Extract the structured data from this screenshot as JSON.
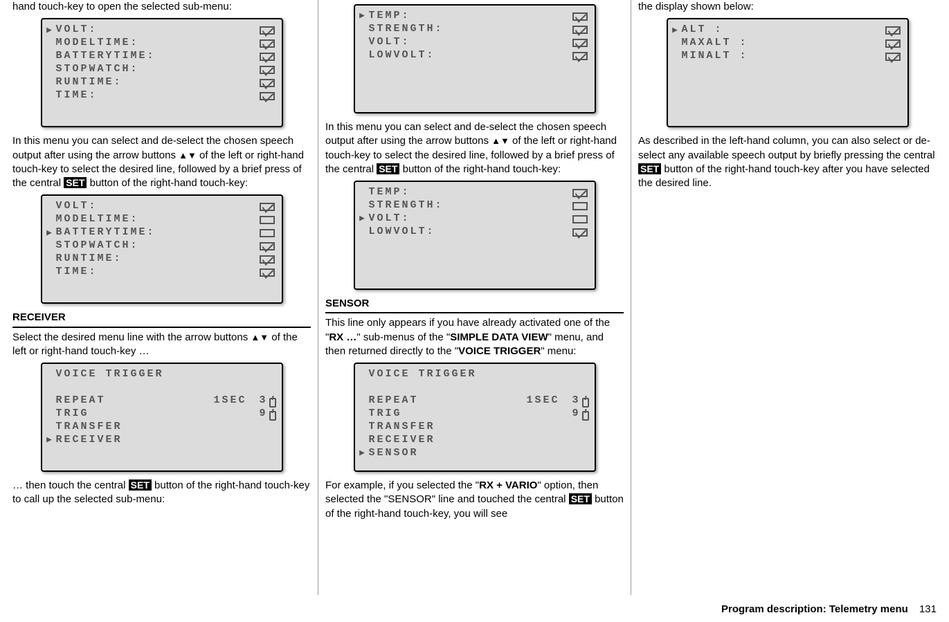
{
  "col1": {
    "p1": "hand touch-key to open the selected sub-menu:",
    "lcd1": {
      "rows": [
        {
          "sel": true,
          "label": "VOLT:",
          "checked": true
        },
        {
          "sel": false,
          "label": "MODELTIME:",
          "checked": true
        },
        {
          "sel": false,
          "label": "BATTERYTIME:",
          "checked": true
        },
        {
          "sel": false,
          "label": "STOPWATCH:",
          "checked": true
        },
        {
          "sel": false,
          "label": "RUNTIME:",
          "checked": true
        },
        {
          "sel": false,
          "label": "TIME:",
          "checked": true
        }
      ]
    },
    "p2a": "In this menu you can select and de-select the chosen speech output after using the arrow buttons ",
    "p2b": " of the left or right-hand touch-key to select the desired line, followed by a brief press of the central ",
    "p2c": " button of the right-hand touch-key:",
    "lcd2": {
      "rows": [
        {
          "sel": false,
          "label": "VOLT:",
          "checked": true
        },
        {
          "sel": false,
          "label": "MODELTIME:",
          "checked": false
        },
        {
          "sel": true,
          "label": "BATTERYTIME:",
          "checked": false
        },
        {
          "sel": false,
          "label": "STOPWATCH:",
          "checked": true
        },
        {
          "sel": false,
          "label": "RUNTIME:",
          "checked": true
        },
        {
          "sel": false,
          "label": "TIME:",
          "checked": true
        }
      ]
    },
    "h_receiver": "RECEIVER",
    "p3a": "Select the desired menu line with the arrow buttons ",
    "p3b": " of the left or right-hand touch-key …",
    "lcd3": {
      "title": "VOICE TRIGGER",
      "rows": [
        {
          "sel": false,
          "label": "REPEAT",
          "v1": "1SEC",
          "v2": "3",
          "sw": true
        },
        {
          "sel": false,
          "label": "TRIG",
          "v1": "",
          "v2": "9",
          "sw": true
        },
        {
          "sel": false,
          "label": "TRANSFER",
          "v1": "",
          "v2": "",
          "sw": false
        },
        {
          "sel": true,
          "label": "RECEIVER",
          "v1": "",
          "v2": "",
          "sw": false
        }
      ]
    },
    "p4a": "… then touch the central ",
    "p4b": " button of the right-hand touch-key to call up the selected sub-menu:"
  },
  "col2": {
    "lcd1": {
      "rows": [
        {
          "sel": true,
          "label": "TEMP:",
          "checked": true
        },
        {
          "sel": false,
          "label": "STRENGTH:",
          "checked": true
        },
        {
          "sel": false,
          "label": "VOLT:",
          "checked": true
        },
        {
          "sel": false,
          "label": "LOWVOLT:",
          "checked": true
        }
      ]
    },
    "p1a": "In this menu you can select and de-select the chosen speech output after using the arrow buttons ",
    "p1b": " of the left or right-hand touch-key to select the desired line, followed by a brief press of the central ",
    "p1c": " button of the right-hand touch-key:",
    "lcd2": {
      "rows": [
        {
          "sel": false,
          "label": "TEMP:",
          "checked": true
        },
        {
          "sel": false,
          "label": "STRENGTH:",
          "checked": false
        },
        {
          "sel": true,
          "label": "VOLT:",
          "checked": false
        },
        {
          "sel": false,
          "label": "LOWVOLT:",
          "checked": true
        }
      ]
    },
    "h_sensor": "SENSOR",
    "p2a": "This line only appears if you have already activated one of the \"",
    "p2_rx": "RX …",
    "p2b": "\" sub-menus of the \"",
    "p2_sdv": "SIMPLE DATA VIEW",
    "p2c": "\" menu, and then returned directly to the \"",
    "p2_vt": "VOICE TRIGGER",
    "p2d": "\" menu:",
    "lcd3": {
      "title": "VOICE TRIGGER",
      "rows": [
        {
          "sel": false,
          "label": "REPEAT",
          "v1": "1SEC",
          "v2": "3",
          "sw": true
        },
        {
          "sel": false,
          "label": "TRIG",
          "v1": "",
          "v2": "9",
          "sw": true
        },
        {
          "sel": false,
          "label": "TRANSFER",
          "v1": "",
          "v2": "",
          "sw": false
        },
        {
          "sel": false,
          "label": "RECEIVER",
          "v1": "",
          "v2": "",
          "sw": false
        },
        {
          "sel": true,
          "label": "SENSOR",
          "v1": "",
          "v2": "",
          "sw": false
        }
      ]
    },
    "p3a": "For example, if you selected the \"",
    "p3_rxv": "RX + VARIO",
    "p3b": "\" option, then selected the \"SENSOR\" line and touched the central ",
    "p3c": " button of the right-hand touch-key, you will see"
  },
  "col3": {
    "p1": "the display shown below:",
    "lcd1": {
      "rows": [
        {
          "sel": true,
          "label": "ALT :",
          "checked": true
        },
        {
          "sel": false,
          "label": "MAXALT :",
          "checked": true
        },
        {
          "sel": false,
          "label": "MINALT :",
          "checked": true
        }
      ]
    },
    "p2a": "As described in the left-hand column, you can also select or de-select any available speech output by briefly pressing the central ",
    "p2b": " button of the right-hand touch-key after you have selected the desired line."
  },
  "common": {
    "set": "SET",
    "arrows": "▲▼"
  },
  "footer": {
    "title": "Program description: Telemetry menu",
    "page": "131"
  }
}
